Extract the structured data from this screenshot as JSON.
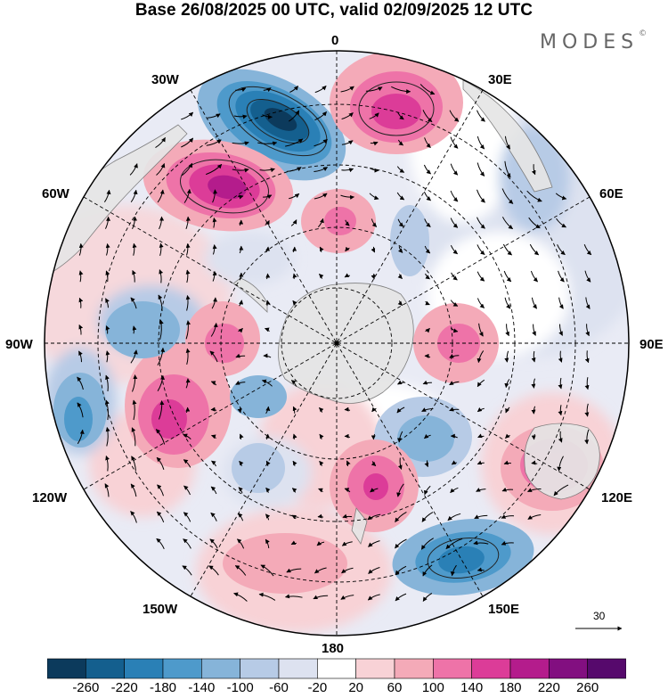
{
  "title": "Base 26/08/2025 00 UTC, valid 02/09/2025 12 UTC",
  "brand": {
    "name": "MODES",
    "mark": "©"
  },
  "longitude_labels": {
    "top": "0",
    "bottom": "180",
    "left": "90W",
    "right": "90E",
    "upper_left_1": "30W",
    "upper_left_2": "60W",
    "upper_right_1": "30E",
    "upper_right_2": "60E",
    "lower_left_1": "120W",
    "lower_left_2": "150W",
    "lower_right_1": "120E",
    "lower_right_2": "150E"
  },
  "vector_key": {
    "label": "30"
  },
  "colorbar": {
    "ticks": [
      "-260",
      "-220",
      "-180",
      "-140",
      "-100",
      "-60",
      "-20",
      "20",
      "60",
      "100",
      "140",
      "180",
      "220",
      "260"
    ],
    "colors": [
      "#0c3a5c",
      "#145f8e",
      "#2a80b6",
      "#4e9acb",
      "#86b4d9",
      "#b7cbe6",
      "#dde2f0",
      "#ffffff",
      "#f8d2d6",
      "#f4aab8",
      "#ee73a8",
      "#dc3c98",
      "#b41c8c",
      "#820f80",
      "#56096c"
    ]
  },
  "colors": {
    "land": "#e5e5e5",
    "coast": "#777777",
    "grid": "#000000"
  }
}
